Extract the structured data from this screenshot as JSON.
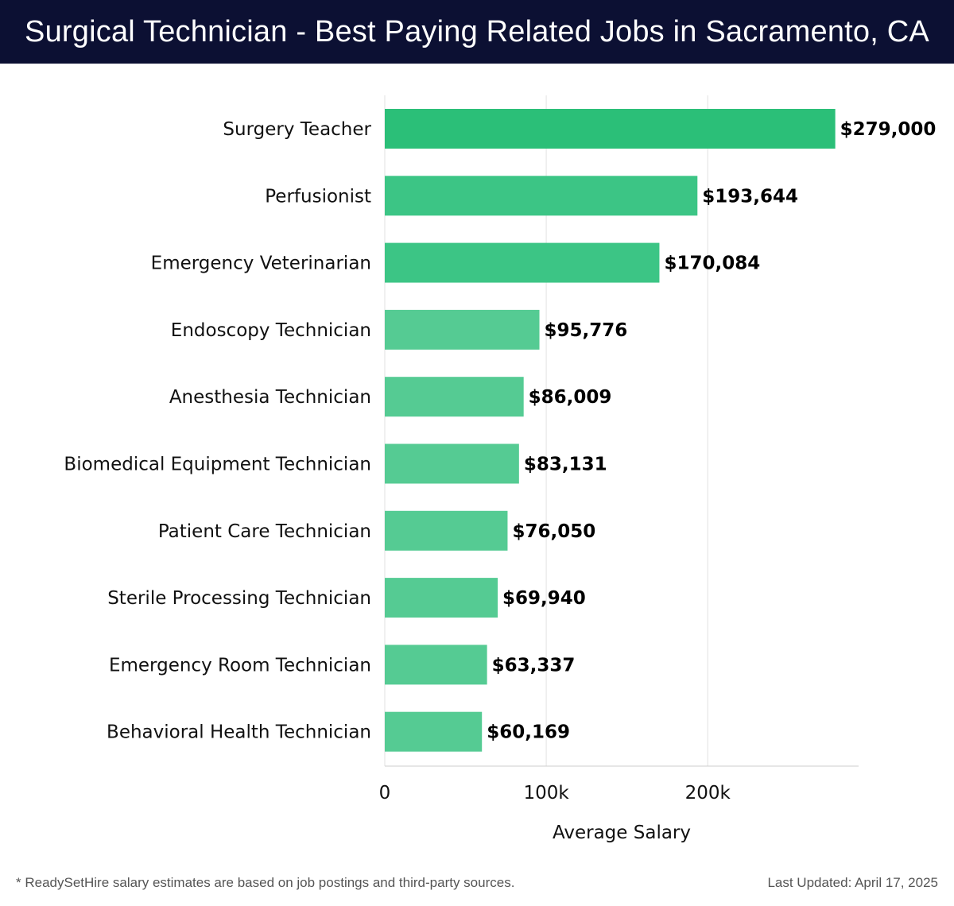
{
  "header": {
    "title": "Surgical Technician - Best Paying Related Jobs in Sacramento, CA"
  },
  "chart_data": {
    "type": "bar",
    "orientation": "horizontal",
    "categories": [
      "Surgery Teacher",
      "Perfusionist",
      "Emergency Veterinarian",
      "Endoscopy Technician",
      "Anesthesia Technician",
      "Biomedical Equipment Technician",
      "Patient Care Technician",
      "Sterile Processing Technician",
      "Emergency Room Technician",
      "Behavioral Health Technician"
    ],
    "values": [
      279000,
      193644,
      170084,
      95776,
      86009,
      83131,
      76050,
      69940,
      63337,
      60169
    ],
    "value_labels": [
      "$279,000",
      "$193,644",
      "$170,084",
      "$95,776",
      "$86,009",
      "$83,131",
      "$76,050",
      "$69,940",
      "$63,337",
      "$60,169"
    ],
    "xlabel": "Average Salary",
    "ylabel": "",
    "xlim": [
      0,
      293000
    ],
    "xticks": [
      0,
      100000,
      200000
    ],
    "xtick_labels": [
      "0",
      "100k",
      "200k"
    ],
    "grid": "vertical",
    "bar_colors": [
      "#2bbf78",
      "#3cc585",
      "#3cc585",
      "#55cb93",
      "#55cb93",
      "#55cb93",
      "#55cb93",
      "#55cb93",
      "#55cb93",
      "#55cb93"
    ]
  },
  "footer": {
    "note": "* ReadySetHire salary estimates are based on job postings and third-party sources.",
    "updated": "Last Updated: April 17, 2025"
  },
  "colors": {
    "header_bg": "#0c1033",
    "grid": "#e2e2e2",
    "axis": "#cccccc"
  }
}
